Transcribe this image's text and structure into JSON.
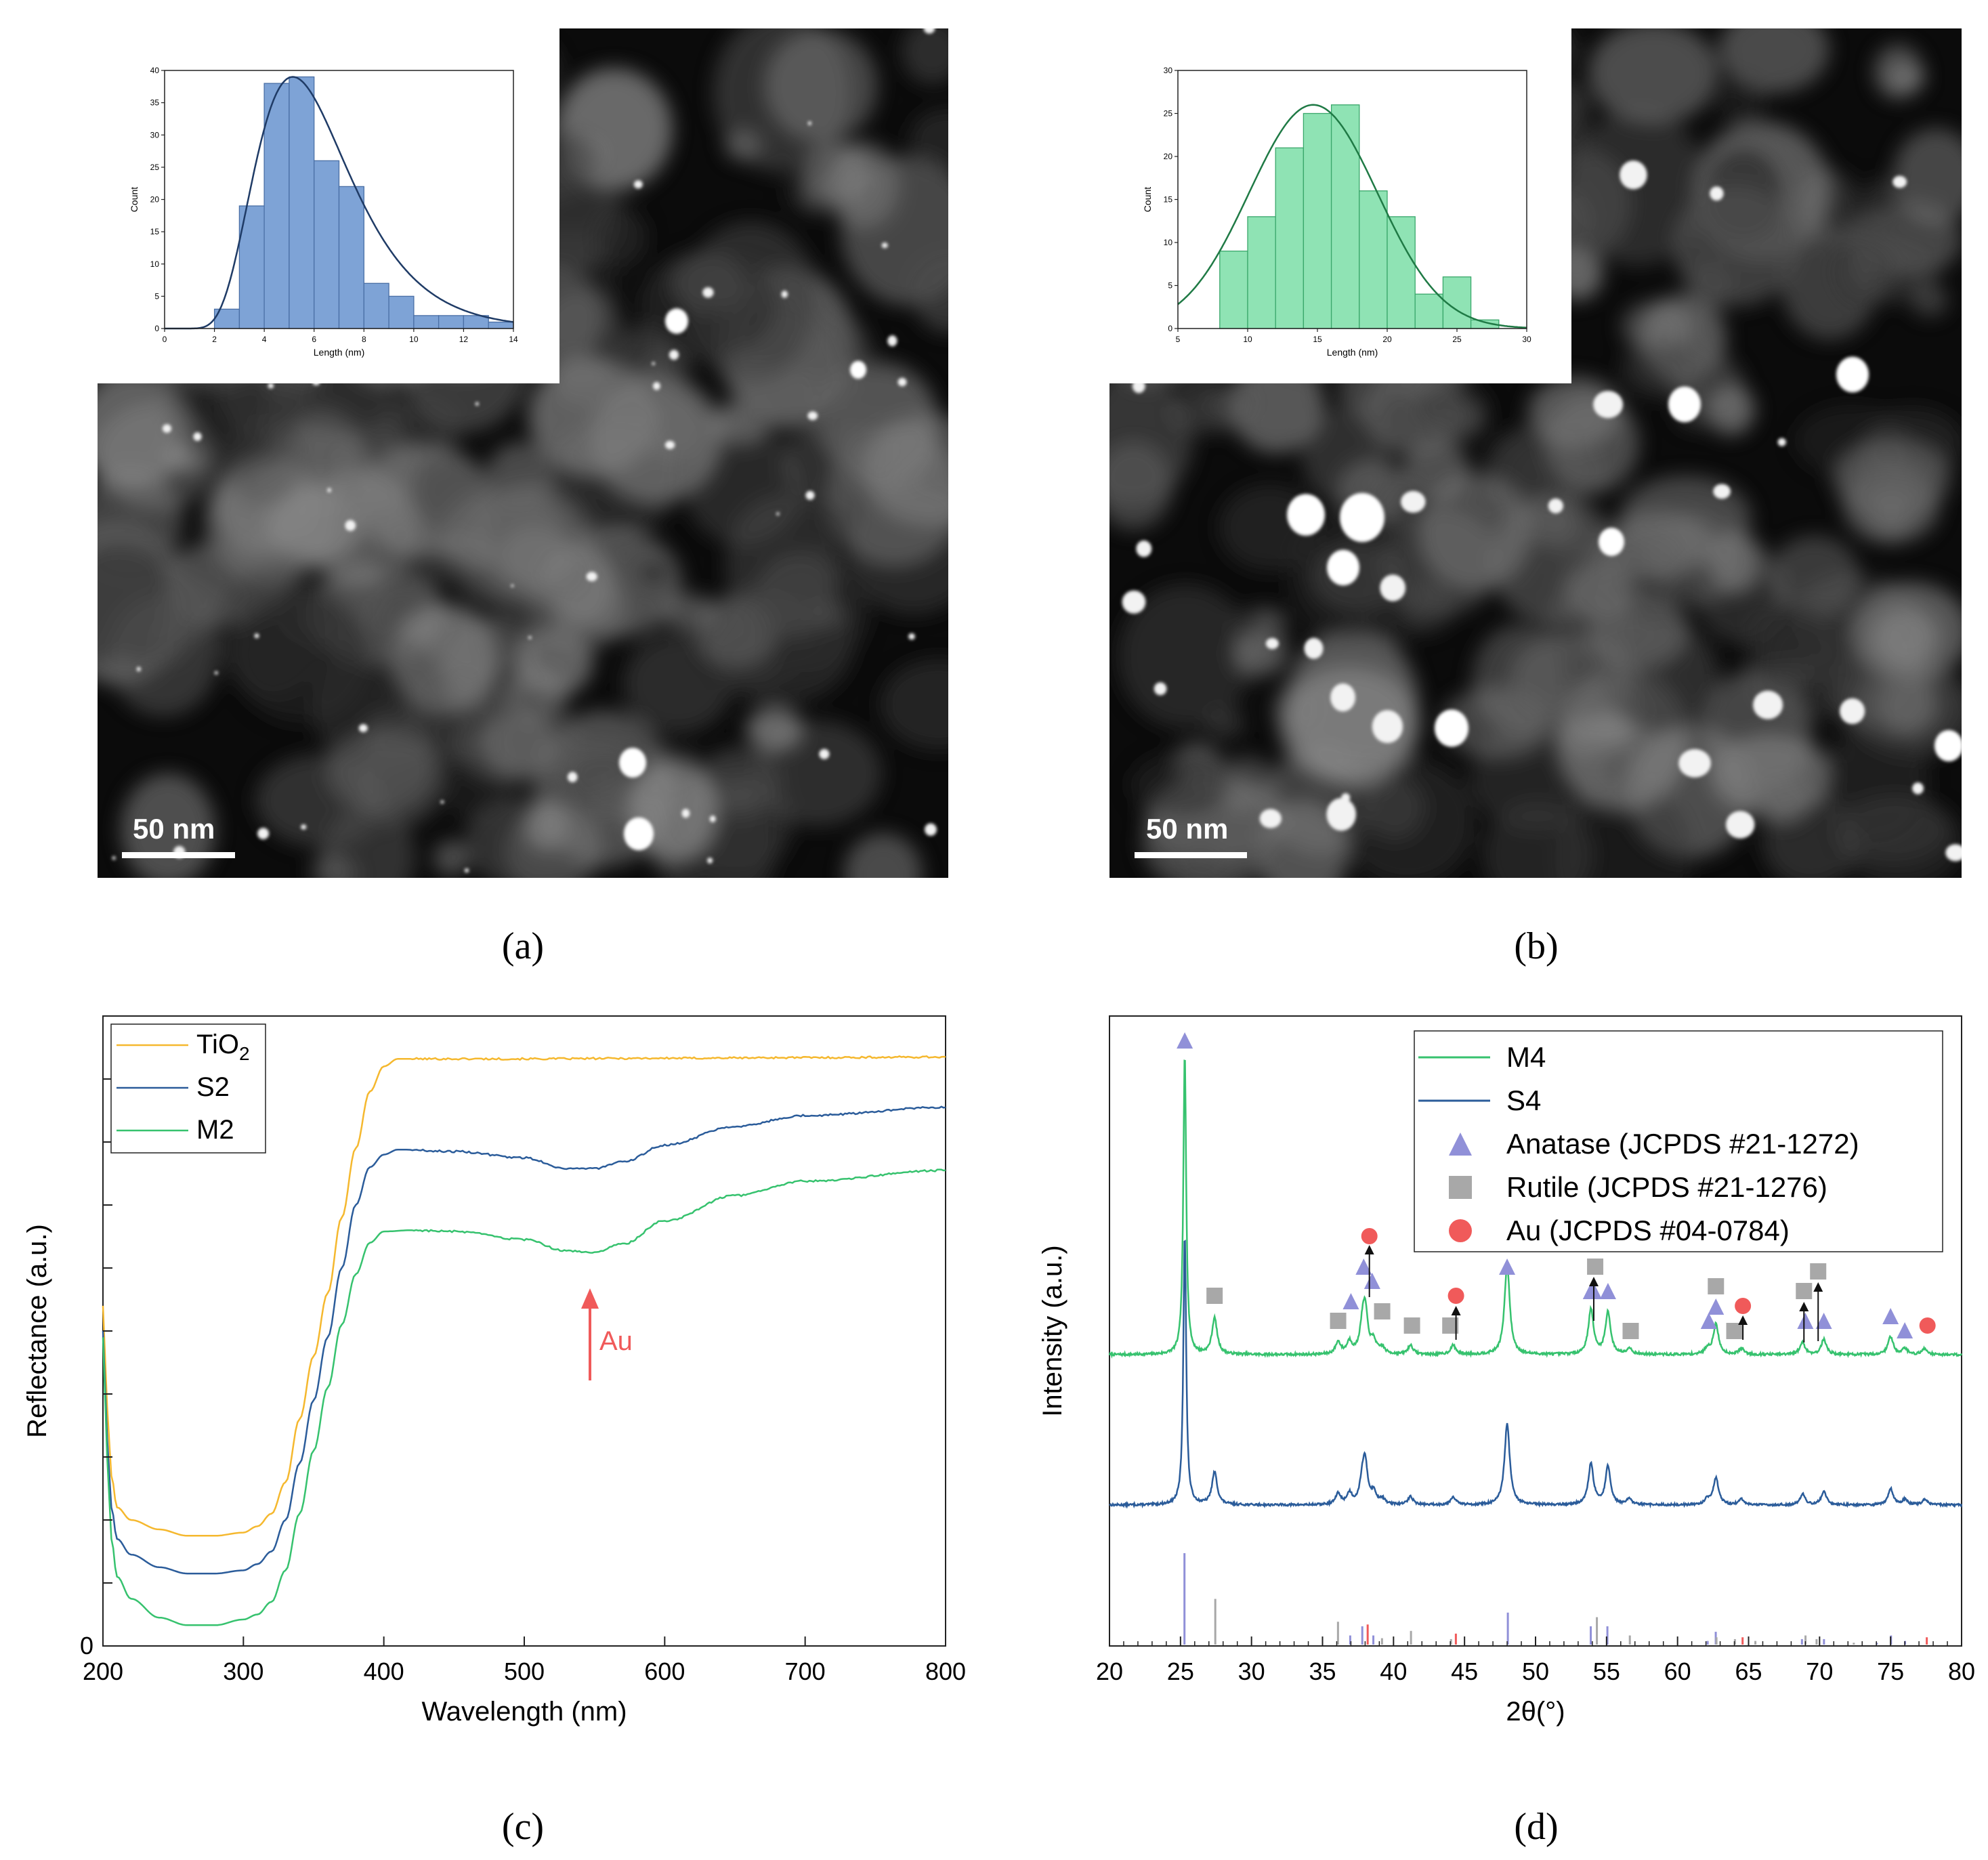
{
  "figure": {
    "panel_a": {
      "label": "(a)",
      "scale_bar": "50 nm",
      "inset": {
        "xlabel": "Length (nm)",
        "ylabel": "Count",
        "bar_color": "#7ea3d6",
        "curve_color": "#1f3b66"
      }
    },
    "panel_b": {
      "label": "(b)",
      "scale_bar": "50 nm",
      "inset": {
        "xlabel": "Length (nm)",
        "ylabel": "Count",
        "bar_color": "#8fe3b4",
        "curve_color": "#1f7a45"
      }
    },
    "panel_c": {
      "label": "(c)",
      "annotation": "Au",
      "annotation_color": "#f05a5a"
    },
    "panel_d": {
      "label": "(d)"
    }
  },
  "chart_data": [
    {
      "id": "inset_a",
      "type": "bar",
      "xlabel": "Length (nm)",
      "ylabel": "Count",
      "xlim": [
        0,
        14
      ],
      "ylim": [
        0,
        40
      ],
      "xticks": [
        0,
        2,
        4,
        6,
        8,
        10,
        12,
        14
      ],
      "yticks": [
        0,
        5,
        10,
        15,
        20,
        25,
        30,
        35,
        40
      ],
      "bins": [
        [
          2,
          3
        ],
        [
          3,
          4
        ],
        [
          4,
          5
        ],
        [
          5,
          6
        ],
        [
          6,
          7
        ],
        [
          7,
          8
        ],
        [
          8,
          9
        ],
        [
          9,
          10
        ],
        [
          10,
          11
        ],
        [
          11,
          12
        ],
        [
          12,
          13
        ],
        [
          13,
          14
        ]
      ],
      "values": [
        3,
        19,
        38,
        39,
        26,
        22,
        7,
        5,
        2,
        2,
        2,
        1
      ],
      "fit": "lognormal",
      "fit_peak": {
        "x": 5.2,
        "y": 39
      }
    },
    {
      "id": "inset_b",
      "type": "bar",
      "xlabel": "Length (nm)",
      "ylabel": "Count",
      "xlim": [
        5,
        30
      ],
      "ylim": [
        0,
        30
      ],
      "xticks": [
        5,
        10,
        15,
        20,
        25,
        30
      ],
      "yticks": [
        0,
        5,
        10,
        15,
        20,
        25,
        30
      ],
      "bins": [
        [
          8,
          10
        ],
        [
          10,
          12
        ],
        [
          12,
          14
        ],
        [
          14,
          16
        ],
        [
          16,
          18
        ],
        [
          18,
          20
        ],
        [
          20,
          22
        ],
        [
          22,
          24
        ],
        [
          24,
          26
        ],
        [
          26,
          28
        ]
      ],
      "values": [
        9,
        13,
        21,
        25,
        26,
        16,
        13,
        4,
        6,
        1
      ],
      "fit": "normal",
      "fit_peak": {
        "x": 14.7,
        "y": 26
      }
    },
    {
      "id": "reflectance",
      "type": "line",
      "xlabel": "Wavelength (nm)",
      "ylabel": "Reflectance (a.u.)",
      "xlim": [
        200,
        800
      ],
      "ylim": [
        0,
        10
      ],
      "xticks": [
        200,
        300,
        400,
        500,
        600,
        700,
        800
      ],
      "ytick_labels": [
        "0"
      ],
      "series": [
        {
          "name": "TiO",
          "sub": "2",
          "color": "#f5b82e",
          "points": [
            [
              200,
              5.4
            ],
            [
              203,
              3.8
            ],
            [
              206,
              2.7
            ],
            [
              210,
              2.2
            ],
            [
              220,
              2.0
            ],
            [
              240,
              1.85
            ],
            [
              260,
              1.75
            ],
            [
              280,
              1.75
            ],
            [
              300,
              1.8
            ],
            [
              310,
              1.9
            ],
            [
              320,
              2.1
            ],
            [
              330,
              2.6
            ],
            [
              340,
              3.6
            ],
            [
              350,
              4.6
            ],
            [
              360,
              5.6
            ],
            [
              370,
              6.8
            ],
            [
              380,
              7.9
            ],
            [
              390,
              8.8
            ],
            [
              400,
              9.2
            ],
            [
              410,
              9.32
            ],
            [
              450,
              9.32
            ],
            [
              500,
              9.32
            ],
            [
              600,
              9.33
            ],
            [
              700,
              9.34
            ],
            [
              800,
              9.35
            ]
          ]
        },
        {
          "name": "S2",
          "color": "#2b5c9a",
          "points": [
            [
              200,
              5.0
            ],
            [
              203,
              3.3
            ],
            [
              206,
              2.2
            ],
            [
              210,
              1.7
            ],
            [
              220,
              1.45
            ],
            [
              240,
              1.25
            ],
            [
              260,
              1.15
            ],
            [
              280,
              1.15
            ],
            [
              300,
              1.2
            ],
            [
              310,
              1.3
            ],
            [
              320,
              1.5
            ],
            [
              330,
              2.0
            ],
            [
              340,
              2.9
            ],
            [
              350,
              3.9
            ],
            [
              360,
              4.9
            ],
            [
              370,
              6.0
            ],
            [
              380,
              7.0
            ],
            [
              390,
              7.6
            ],
            [
              400,
              7.8
            ],
            [
              410,
              7.88
            ],
            [
              450,
              7.85
            ],
            [
              500,
              7.75
            ],
            [
              530,
              7.58
            ],
            [
              550,
              7.58
            ],
            [
              570,
              7.68
            ],
            [
              600,
              7.95
            ],
            [
              650,
              8.25
            ],
            [
              700,
              8.42
            ],
            [
              800,
              8.55
            ]
          ]
        },
        {
          "name": "M2",
          "color": "#36c26e",
          "points": [
            [
              200,
              4.9
            ],
            [
              203,
              3.0
            ],
            [
              206,
              1.7
            ],
            [
              210,
              1.1
            ],
            [
              220,
              0.75
            ],
            [
              240,
              0.45
            ],
            [
              260,
              0.33
            ],
            [
              280,
              0.33
            ],
            [
              300,
              0.42
            ],
            [
              310,
              0.5
            ],
            [
              320,
              0.7
            ],
            [
              330,
              1.2
            ],
            [
              340,
              2.1
            ],
            [
              350,
              3.1
            ],
            [
              360,
              4.1
            ],
            [
              370,
              5.1
            ],
            [
              380,
              5.9
            ],
            [
              390,
              6.4
            ],
            [
              400,
              6.58
            ],
            [
              420,
              6.6
            ],
            [
              450,
              6.58
            ],
            [
              500,
              6.45
            ],
            [
              530,
              6.27
            ],
            [
              550,
              6.25
            ],
            [
              570,
              6.38
            ],
            [
              600,
              6.75
            ],
            [
              650,
              7.15
            ],
            [
              700,
              7.38
            ],
            [
              800,
              7.55
            ]
          ]
        }
      ]
    },
    {
      "id": "xrd",
      "type": "line",
      "xlabel": "2θ(°)",
      "ylabel": "Intensity (a.u.)",
      "xlim": [
        20,
        80
      ],
      "xticks": [
        20,
        25,
        30,
        35,
        40,
        45,
        50,
        55,
        60,
        65,
        70,
        75,
        80
      ],
      "series": [
        {
          "name": "M4",
          "color": "#36c26e"
        },
        {
          "name": "S4",
          "color": "#2b5c9a"
        }
      ],
      "peaks": [
        [
          25.3,
          100
        ],
        [
          27.4,
          12
        ],
        [
          36.1,
          4
        ],
        [
          36.9,
          4
        ],
        [
          37.8,
          7
        ],
        [
          38.0,
          14
        ],
        [
          38.6,
          4
        ],
        [
          39.2,
          2
        ],
        [
          41.2,
          3
        ],
        [
          44.2,
          3
        ],
        [
          48.0,
          30
        ],
        [
          53.9,
          15
        ],
        [
          55.1,
          14
        ],
        [
          56.6,
          2
        ],
        [
          62.1,
          2
        ],
        [
          62.7,
          10
        ],
        [
          64.5,
          2
        ],
        [
          68.8,
          4
        ],
        [
          70.3,
          5
        ],
        [
          75.0,
          6
        ],
        [
          76.0,
          2
        ],
        [
          77.4,
          2
        ]
      ],
      "references": [
        {
          "name": "Anatase (JCPDS #21-1272)",
          "marker": "triangle",
          "color": "#9090d8",
          "lines": [
            [
              25.28,
              100
            ],
            [
              36.95,
              10
            ],
            [
              37.8,
              20
            ],
            [
              38.58,
              10
            ],
            [
              48.05,
              35
            ],
            [
              53.89,
              20
            ],
            [
              55.06,
              20
            ],
            [
              62.12,
              4
            ],
            [
              62.69,
              14
            ],
            [
              68.76,
              6
            ],
            [
              70.31,
              6
            ],
            [
              74.03,
              2
            ],
            [
              75.03,
              10
            ],
            [
              76.02,
              4
            ]
          ]
        },
        {
          "name": "Rutile (JCPDS #21-1276)",
          "marker": "square",
          "color": "#a8a8a8",
          "lines": [
            [
              27.45,
              50
            ],
            [
              36.09,
              25
            ],
            [
              39.19,
              7
            ],
            [
              41.23,
              15
            ],
            [
              44.05,
              6
            ],
            [
              54.32,
              30
            ],
            [
              56.64,
              10
            ],
            [
              62.74,
              8
            ],
            [
              64.04,
              6
            ],
            [
              65.48,
              4
            ],
            [
              69.01,
              10
            ],
            [
              69.79,
              6
            ],
            [
              72.41,
              2
            ]
          ]
        },
        {
          "name": "Au (JCPDS #04-0784)",
          "marker": "circle",
          "color": "#f05a5a",
          "lines": [
            [
              38.18,
              22
            ],
            [
              44.39,
              12
            ],
            [
              64.58,
              8
            ],
            [
              77.55,
              8
            ]
          ]
        }
      ]
    }
  ]
}
